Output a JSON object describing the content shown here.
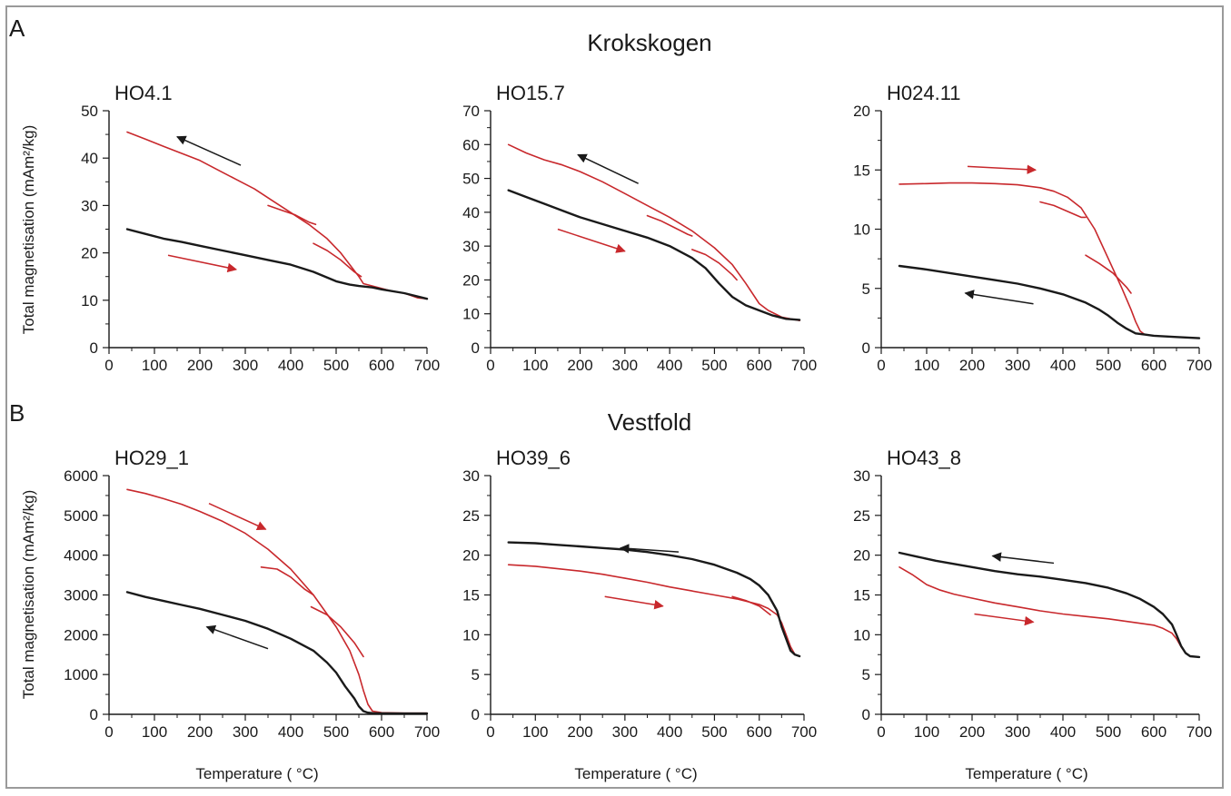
{
  "figure": {
    "section_a": {
      "letter": "A",
      "title": "Krokskogen"
    },
    "section_b": {
      "letter": "B",
      "title": "Vestfold"
    },
    "ylabel_top": "Total magnetisation (mAm²/kg)",
    "ylabel_bottom": "Total magnetisation (mAm²/kg)",
    "xlabel": "Temperature ( °C)"
  },
  "colors": {
    "heating": "#c8282c",
    "cooling": "#1a1a1a",
    "axis": "#1a1a1a"
  },
  "chart_data": [
    {
      "type": "line",
      "title": "HO4.1",
      "xlim": [
        0,
        700
      ],
      "ylim": [
        0,
        50
      ],
      "xticks": [
        0,
        100,
        200,
        300,
        400,
        500,
        600,
        700
      ],
      "yticks": [
        0,
        10,
        20,
        30,
        40,
        50
      ],
      "series": [
        {
          "color": "red",
          "x": [
            40,
            80,
            120,
            160,
            200,
            240,
            280,
            320,
            360,
            400,
            440,
            480,
            510,
            530,
            550,
            560,
            580,
            600,
            620,
            650,
            680,
            700
          ],
          "y": [
            45.5,
            44,
            42.5,
            41,
            39.5,
            37.5,
            35.5,
            33.5,
            31,
            28.5,
            26,
            23,
            20,
            17.5,
            15,
            13.5,
            13,
            12.5,
            12,
            11.5,
            10.5,
            10.3
          ]
        },
        {
          "color": "black",
          "x": [
            40,
            80,
            120,
            160,
            200,
            250,
            300,
            350,
            400,
            450,
            500,
            530,
            550,
            580,
            600,
            650,
            700
          ],
          "y": [
            25,
            24,
            23,
            22.3,
            21.5,
            20.5,
            19.5,
            18.5,
            17.5,
            16,
            14,
            13.3,
            13,
            12.7,
            12.3,
            11.5,
            10.3
          ]
        },
        {
          "color": "red",
          "x": [
            350,
            380,
            410,
            440,
            455
          ],
          "y": [
            30,
            29,
            28,
            26.5,
            26
          ]
        },
        {
          "color": "red",
          "x": [
            450,
            480,
            510,
            540,
            555
          ],
          "y": [
            22,
            20.5,
            18.5,
            16,
            15
          ]
        }
      ],
      "arrows": [
        {
          "color": "black",
          "from": [
            290,
            38.5
          ],
          "to": [
            150,
            44.5
          ]
        },
        {
          "color": "red",
          "from": [
            130,
            19.5
          ],
          "to": [
            280,
            16.5
          ]
        }
      ]
    },
    {
      "type": "line",
      "title": "HO15.7",
      "xlim": [
        0,
        700
      ],
      "ylim": [
        0,
        70
      ],
      "xticks": [
        0,
        100,
        200,
        300,
        400,
        500,
        600,
        700
      ],
      "yticks": [
        0,
        10,
        20,
        30,
        40,
        50,
        60,
        70
      ],
      "series": [
        {
          "color": "red",
          "x": [
            40,
            80,
            120,
            160,
            200,
            250,
            300,
            350,
            400,
            450,
            500,
            540,
            570,
            600,
            620,
            650,
            690
          ],
          "y": [
            60,
            57.5,
            55.5,
            54,
            52,
            49,
            45.5,
            42,
            38.5,
            34.5,
            29.5,
            24.5,
            19,
            13,
            11,
            9,
            8
          ]
        },
        {
          "color": "black",
          "x": [
            40,
            80,
            120,
            160,
            200,
            250,
            300,
            350,
            400,
            450,
            480,
            510,
            540,
            570,
            600,
            630,
            660,
            690
          ],
          "y": [
            46.5,
            44.5,
            42.5,
            40.5,
            38.5,
            36.5,
            34.5,
            32.5,
            30,
            26.5,
            23.5,
            19,
            15,
            12.5,
            11,
            9.5,
            8.5,
            8.2
          ]
        },
        {
          "color": "red",
          "x": [
            350,
            380,
            410,
            440,
            450
          ],
          "y": [
            39,
            37.5,
            35.5,
            33.5,
            33
          ]
        },
        {
          "color": "red",
          "x": [
            450,
            480,
            510,
            540,
            550
          ],
          "y": [
            29,
            27.5,
            25,
            21.5,
            20
          ]
        }
      ],
      "arrows": [
        {
          "color": "black",
          "from": [
            330,
            48.5
          ],
          "to": [
            195,
            57
          ]
        },
        {
          "color": "red",
          "from": [
            150,
            35
          ],
          "to": [
            300,
            28.5
          ]
        }
      ]
    },
    {
      "type": "line",
      "title": "H024.11",
      "xlim": [
        0,
        700
      ],
      "ylim": [
        0,
        20
      ],
      "xticks": [
        0,
        100,
        200,
        300,
        400,
        500,
        600,
        700
      ],
      "yticks": [
        0,
        5,
        10,
        15,
        20
      ],
      "series": [
        {
          "color": "red",
          "x": [
            40,
            100,
            150,
            200,
            250,
            300,
            350,
            380,
            410,
            440,
            470,
            500,
            530,
            550,
            560,
            570,
            580,
            600,
            650,
            700
          ],
          "y": [
            13.8,
            13.85,
            13.9,
            13.9,
            13.85,
            13.75,
            13.5,
            13.2,
            12.7,
            11.8,
            10,
            7.5,
            5,
            3.2,
            2.2,
            1.4,
            1.1,
            1,
            0.9,
            0.8
          ]
        },
        {
          "color": "black",
          "x": [
            40,
            100,
            150,
            200,
            250,
            300,
            350,
            400,
            450,
            480,
            500,
            520,
            540,
            560,
            580,
            600,
            650,
            700
          ],
          "y": [
            6.9,
            6.6,
            6.3,
            6,
            5.7,
            5.4,
            5,
            4.5,
            3.8,
            3.2,
            2.7,
            2.1,
            1.6,
            1.2,
            1.1,
            1,
            0.9,
            0.8
          ]
        },
        {
          "color": "red",
          "x": [
            350,
            380,
            410,
            440,
            450
          ],
          "y": [
            12.3,
            12,
            11.5,
            11,
            11
          ]
        },
        {
          "color": "red",
          "x": [
            450,
            480,
            510,
            540,
            550
          ],
          "y": [
            7.8,
            7.1,
            6.3,
            5.1,
            4.6
          ]
        }
      ],
      "arrows": [
        {
          "color": "red",
          "from": [
            190,
            15.3
          ],
          "to": [
            340,
            15
          ]
        },
        {
          "color": "black",
          "from": [
            335,
            3.7
          ],
          "to": [
            185,
            4.6
          ]
        }
      ]
    },
    {
      "type": "line",
      "title": "HO29_1",
      "xlim": [
        0,
        700
      ],
      "ylim": [
        0,
        6000
      ],
      "xticks": [
        0,
        100,
        200,
        300,
        400,
        500,
        600,
        700
      ],
      "yticks": [
        0,
        1000,
        2000,
        3000,
        4000,
        5000,
        6000
      ],
      "series": [
        {
          "color": "red",
          "x": [
            40,
            80,
            120,
            160,
            200,
            250,
            300,
            350,
            400,
            450,
            500,
            530,
            550,
            560,
            570,
            580,
            600,
            650,
            700
          ],
          "y": [
            5650,
            5550,
            5420,
            5280,
            5100,
            4850,
            4550,
            4150,
            3650,
            3000,
            2200,
            1600,
            1000,
            600,
            250,
            80,
            40,
            30,
            30
          ]
        },
        {
          "color": "black",
          "x": [
            40,
            80,
            120,
            160,
            200,
            250,
            300,
            350,
            400,
            450,
            480,
            500,
            520,
            540,
            550,
            560,
            570,
            580,
            600,
            650,
            700
          ],
          "y": [
            3070,
            2950,
            2850,
            2750,
            2650,
            2500,
            2350,
            2150,
            1900,
            1600,
            1300,
            1050,
            700,
            400,
            200,
            80,
            40,
            30,
            25,
            20,
            20
          ]
        },
        {
          "color": "red",
          "x": [
            335,
            370,
            400,
            430,
            450
          ],
          "y": [
            3700,
            3650,
            3450,
            3150,
            3000
          ]
        },
        {
          "color": "red",
          "x": [
            445,
            480,
            510,
            540,
            560
          ],
          "y": [
            2700,
            2500,
            2200,
            1800,
            1450
          ]
        }
      ],
      "arrows": [
        {
          "color": "red",
          "from": [
            220,
            5300
          ],
          "to": [
            345,
            4650
          ]
        },
        {
          "color": "black",
          "from": [
            350,
            1650
          ],
          "to": [
            215,
            2200
          ]
        }
      ]
    },
    {
      "type": "line",
      "title": "HO39_6",
      "xlim": [
        0,
        700
      ],
      "ylim": [
        0,
        30
      ],
      "xticks": [
        0,
        100,
        200,
        300,
        400,
        500,
        600,
        700
      ],
      "yticks": [
        0,
        5,
        10,
        15,
        20,
        25,
        30
      ],
      "series": [
        {
          "color": "red",
          "x": [
            40,
            100,
            150,
            200,
            250,
            300,
            350,
            400,
            450,
            500,
            550,
            600,
            620,
            640,
            650,
            660,
            670,
            680,
            690
          ],
          "y": [
            18.8,
            18.6,
            18.3,
            18,
            17.6,
            17.1,
            16.6,
            16,
            15.5,
            15,
            14.5,
            13.8,
            13.3,
            12.5,
            11.5,
            10,
            8.5,
            7.5,
            7.3
          ]
        },
        {
          "color": "black",
          "x": [
            40,
            100,
            150,
            200,
            250,
            300,
            350,
            400,
            450,
            500,
            550,
            580,
            600,
            620,
            640,
            650,
            660,
            670,
            680,
            690
          ],
          "y": [
            21.6,
            21.5,
            21.3,
            21.1,
            20.9,
            20.7,
            20.4,
            20,
            19.5,
            18.8,
            17.8,
            17,
            16.2,
            15,
            13,
            11,
            9.5,
            8,
            7.5,
            7.3
          ]
        },
        {
          "color": "red",
          "x": [
            540,
            570,
            600,
            625
          ],
          "y": [
            14.8,
            14.3,
            13.6,
            12.5
          ]
        }
      ],
      "arrows": [
        {
          "color": "black",
          "from": [
            420,
            20.4
          ],
          "to": [
            290,
            20.9
          ]
        },
        {
          "color": "red",
          "from": [
            255,
            14.8
          ],
          "to": [
            385,
            13.6
          ]
        }
      ]
    },
    {
      "type": "line",
      "title": "HO43_8",
      "xlim": [
        0,
        700
      ],
      "ylim": [
        0,
        30
      ],
      "xticks": [
        0,
        100,
        200,
        300,
        400,
        500,
        600,
        700
      ],
      "yticks": [
        0,
        5,
        10,
        15,
        20,
        25,
        30
      ],
      "series": [
        {
          "color": "red",
          "x": [
            40,
            70,
            100,
            130,
            160,
            200,
            250,
            300,
            350,
            400,
            450,
            500,
            550,
            600,
            620,
            640,
            650,
            660,
            670,
            680,
            700
          ],
          "y": [
            18.5,
            17.5,
            16.3,
            15.6,
            15.1,
            14.6,
            14,
            13.5,
            13,
            12.6,
            12.3,
            12,
            11.6,
            11.2,
            10.8,
            10.2,
            9.5,
            8.5,
            7.7,
            7.3,
            7.2
          ]
        },
        {
          "color": "black",
          "x": [
            40,
            80,
            120,
            160,
            200,
            250,
            300,
            350,
            400,
            450,
            500,
            540,
            570,
            600,
            620,
            640,
            650,
            660,
            670,
            680,
            700
          ],
          "y": [
            20.3,
            19.8,
            19.3,
            18.9,
            18.5,
            18,
            17.6,
            17.3,
            16.9,
            16.5,
            15.9,
            15.2,
            14.5,
            13.5,
            12.6,
            11.3,
            10,
            8.6,
            7.7,
            7.3,
            7.2
          ]
        }
      ],
      "arrows": [
        {
          "color": "black",
          "from": [
            380,
            19
          ],
          "to": [
            245,
            19.9
          ]
        },
        {
          "color": "red",
          "from": [
            205,
            12.6
          ],
          "to": [
            335,
            11.6
          ]
        }
      ]
    }
  ]
}
